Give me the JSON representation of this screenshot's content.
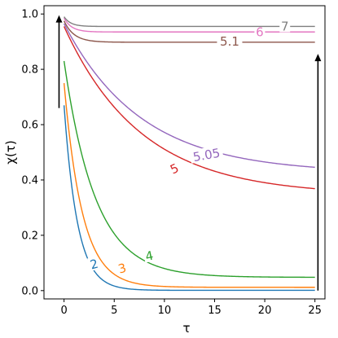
{
  "chart_data": {
    "type": "line",
    "title": "",
    "xlabel": "τ",
    "ylabel": "χ(τ)",
    "xlim": [
      -2,
      26
    ],
    "ylim": [
      -0.03,
      1.03
    ],
    "xticks": [
      0,
      5,
      10,
      15,
      20,
      25
    ],
    "yticks": [
      0.0,
      0.2,
      0.4,
      0.6,
      0.8,
      1.0
    ],
    "ytick_labels": [
      "0.0",
      "0.2",
      "0.4",
      "0.6",
      "0.8",
      "1.0"
    ],
    "grid": false,
    "series": [
      {
        "name": "2",
        "color": "#1f77b4",
        "start": [
          0,
          0.67
        ],
        "plateau": 0.001,
        "rate": 0.75,
        "label_at": [
          3,
          0.095
        ],
        "label_rot": -15
      },
      {
        "name": "3",
        "color": "#ff7f0e",
        "start": [
          0,
          0.75
        ],
        "plateau": 0.012,
        "rate": 0.55,
        "label_at": [
          5.8,
          0.08
        ],
        "label_rot": -15
      },
      {
        "name": "4",
        "color": "#2ca02c",
        "start": [
          0,
          0.83
        ],
        "plateau": 0.048,
        "rate": 0.32,
        "label_at": [
          8.5,
          0.125
        ],
        "label_rot": -12
      },
      {
        "name": "5",
        "color": "#d62728",
        "start": [
          0,
          0.955
        ],
        "plateau": 0.345,
        "rate": 0.13,
        "label_at": [
          11,
          0.44
        ],
        "label_rot": -25
      },
      {
        "name": "5.05",
        "color": "#9467bd",
        "start": [
          0,
          0.965
        ],
        "plateau": 0.425,
        "rate": 0.13,
        "label_at": [
          14.2,
          0.49
        ],
        "label_rot": -10
      },
      {
        "name": "5.1",
        "color": "#8c564b",
        "start": [
          0,
          0.975
        ],
        "plateau": 0.898,
        "rate": 1.0,
        "label_at": [
          16.5,
          0.9
        ],
        "label_rot": 0
      },
      {
        "name": "6",
        "color": "#e377c2",
        "start": [
          0,
          0.985
        ],
        "plateau": 0.935,
        "rate": 1.3,
        "label_at": [
          19.5,
          0.935
        ],
        "label_rot": 0
      },
      {
        "name": "7",
        "color": "#7f7f7f",
        "start": [
          0,
          0.99
        ],
        "plateau": 0.955,
        "rate": 1.5,
        "label_at": [
          22,
          0.955
        ],
        "label_rot": 0
      }
    ],
    "arrows": [
      {
        "x": -0.5,
        "from": 0.66,
        "to": 0.99
      },
      {
        "x": 25.3,
        "from": 0.0,
        "to": 0.85
      }
    ]
  }
}
